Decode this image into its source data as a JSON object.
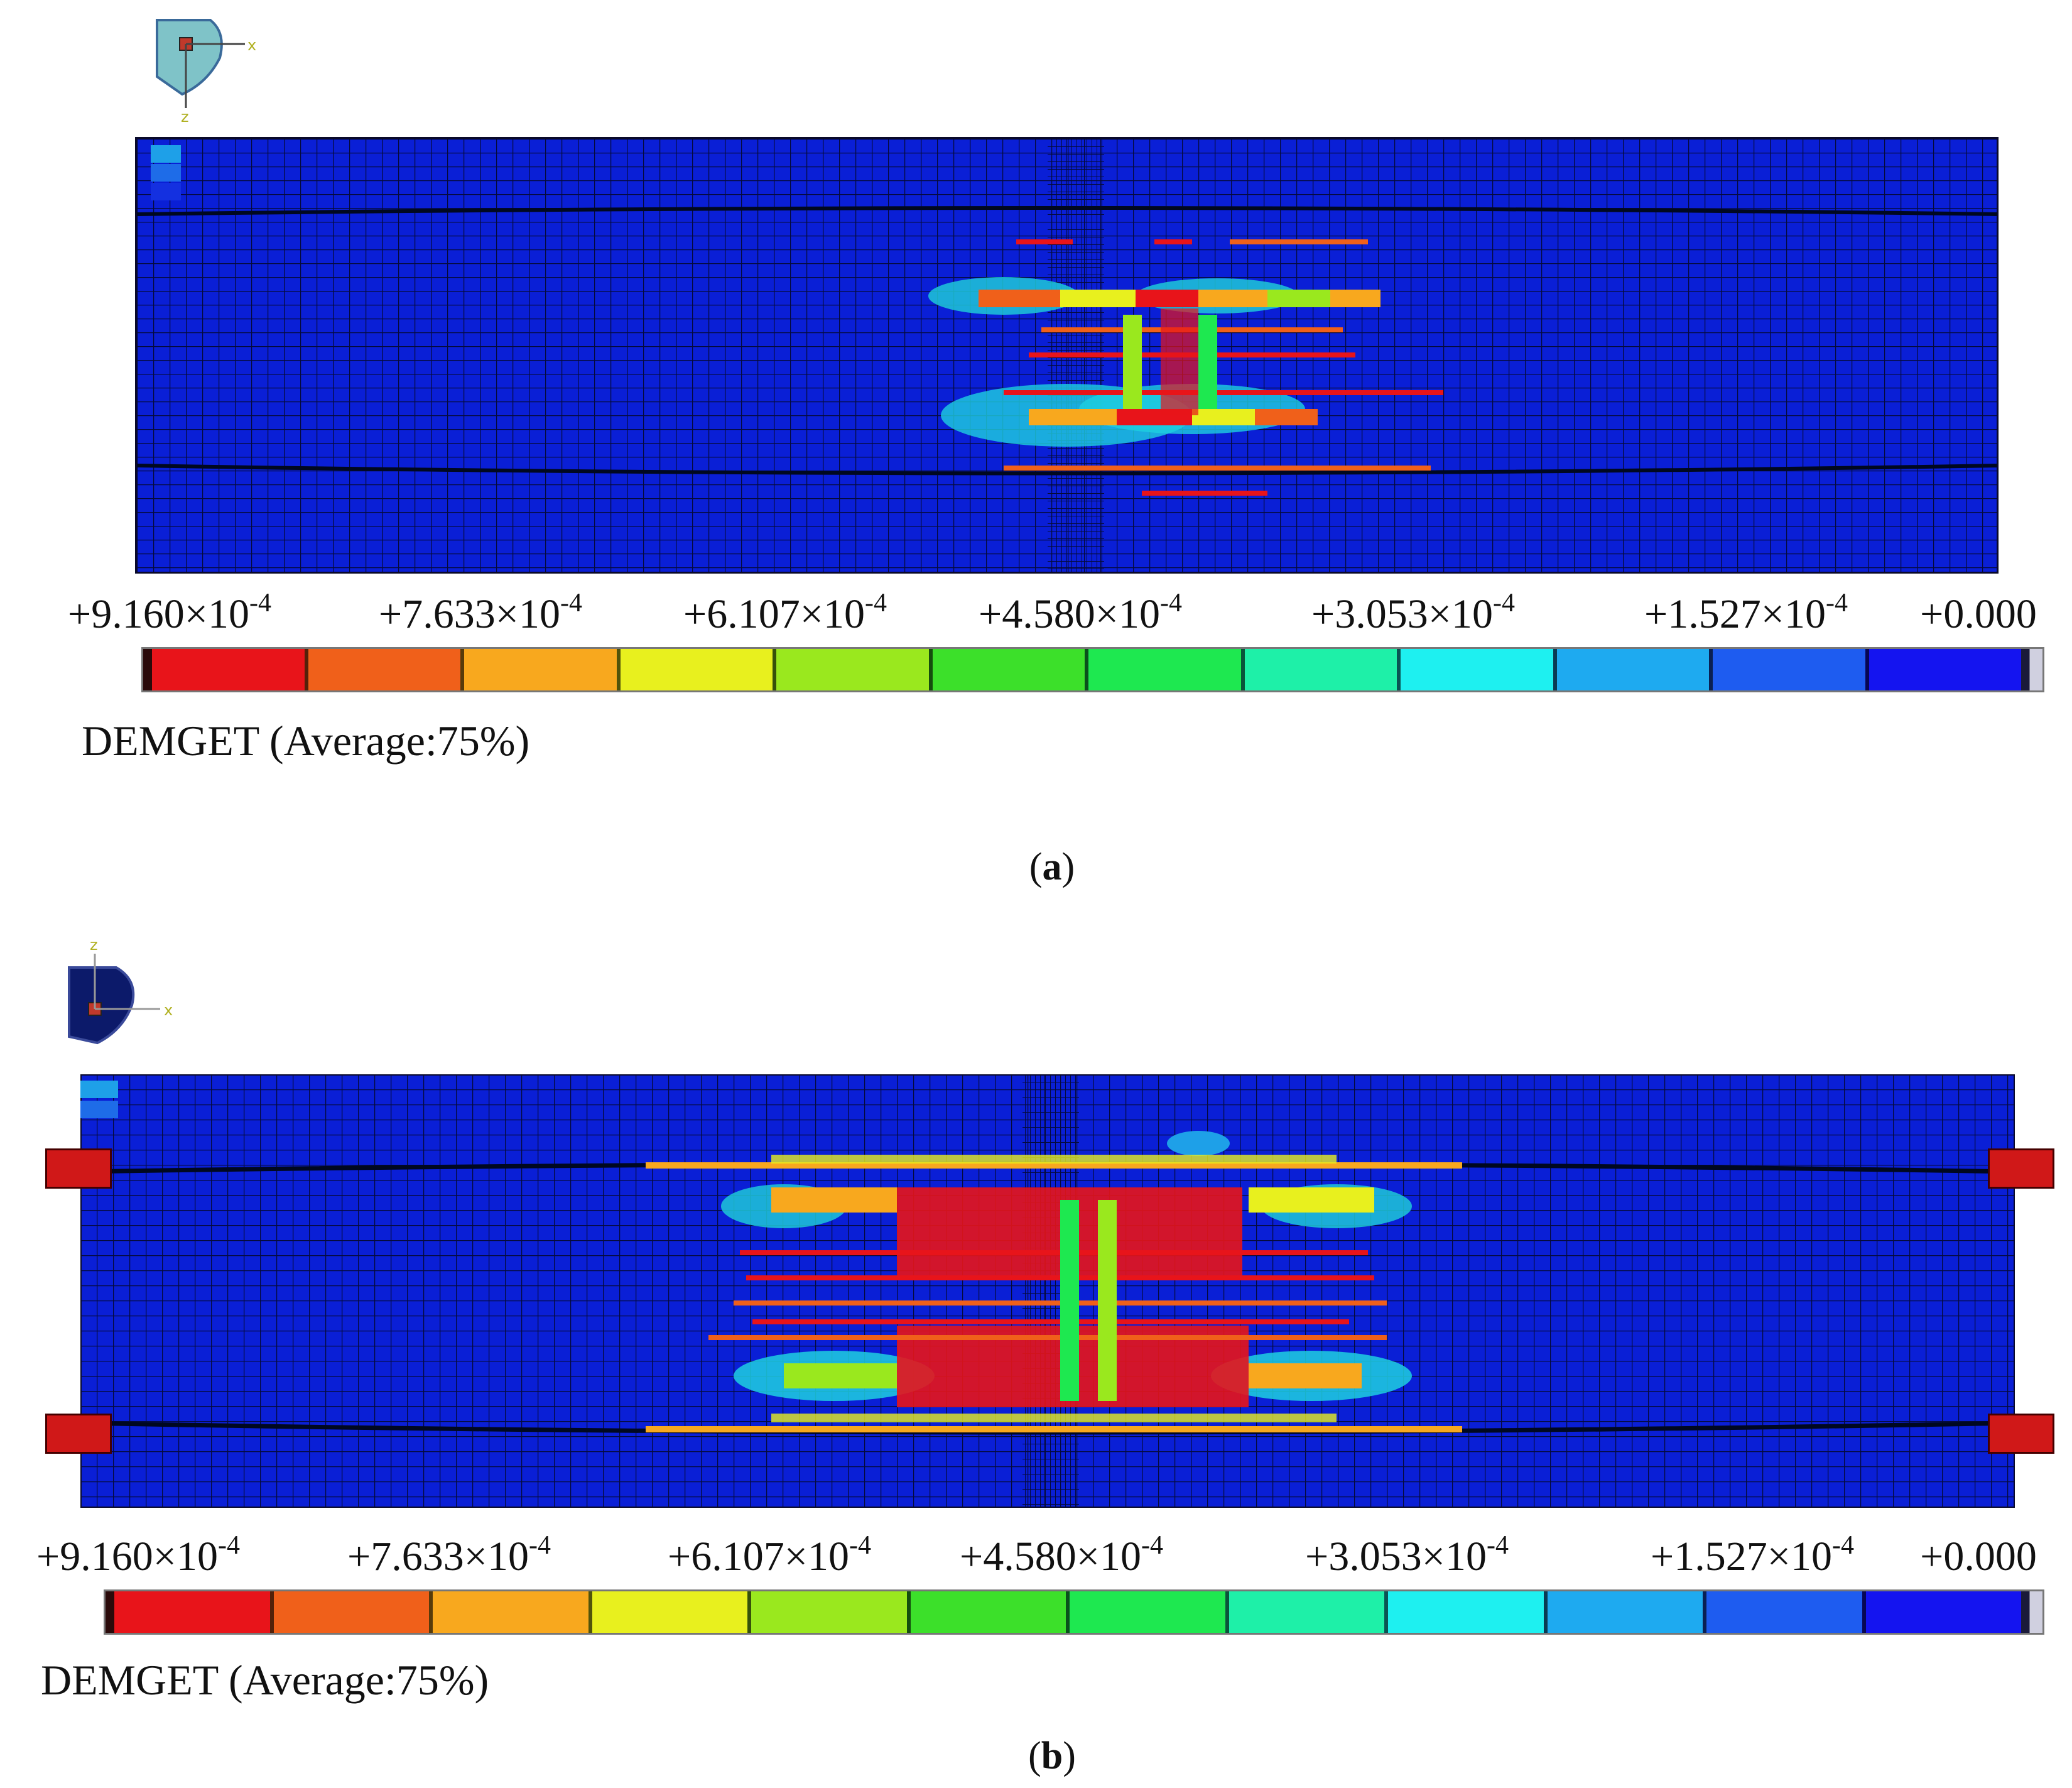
{
  "colors": {
    "background_blue": "#0a1fd6",
    "mesh_line": "#050a3a",
    "scale": [
      "#e8141a",
      "#f0601a",
      "#f8a81e",
      "#e8f01e",
      "#9ae81e",
      "#3ce02a",
      "#1ee850",
      "#1ef0a8",
      "#1ef0f0",
      "#1eaaf0",
      "#1e5cf0",
      "#1414f0"
    ]
  },
  "legend": {
    "ticks": [
      {
        "mantissa": "+9.160×10",
        "exp": "-4"
      },
      {
        "mantissa": "+7.633×10",
        "exp": "-4"
      },
      {
        "mantissa": "+6.107×10",
        "exp": "-4"
      },
      {
        "mantissa": "+4.580×10",
        "exp": "-4"
      },
      {
        "mantissa": "+3.053×10",
        "exp": "-4"
      },
      {
        "mantissa": "+1.527×10",
        "exp": "-4"
      },
      {
        "mantissa": "+0.000",
        "exp": ""
      }
    ],
    "variable_label": "DEMGET (Average:75%)"
  },
  "triad_icons": {
    "panel_a": {
      "x": "x",
      "z": "z"
    },
    "panel_b": {
      "x": "x",
      "z": "z"
    }
  },
  "captions": {
    "a": {
      "open": "(",
      "letter": "a",
      "close": ")"
    },
    "b": {
      "open": "(",
      "letter": "b",
      "close": ")"
    }
  }
}
